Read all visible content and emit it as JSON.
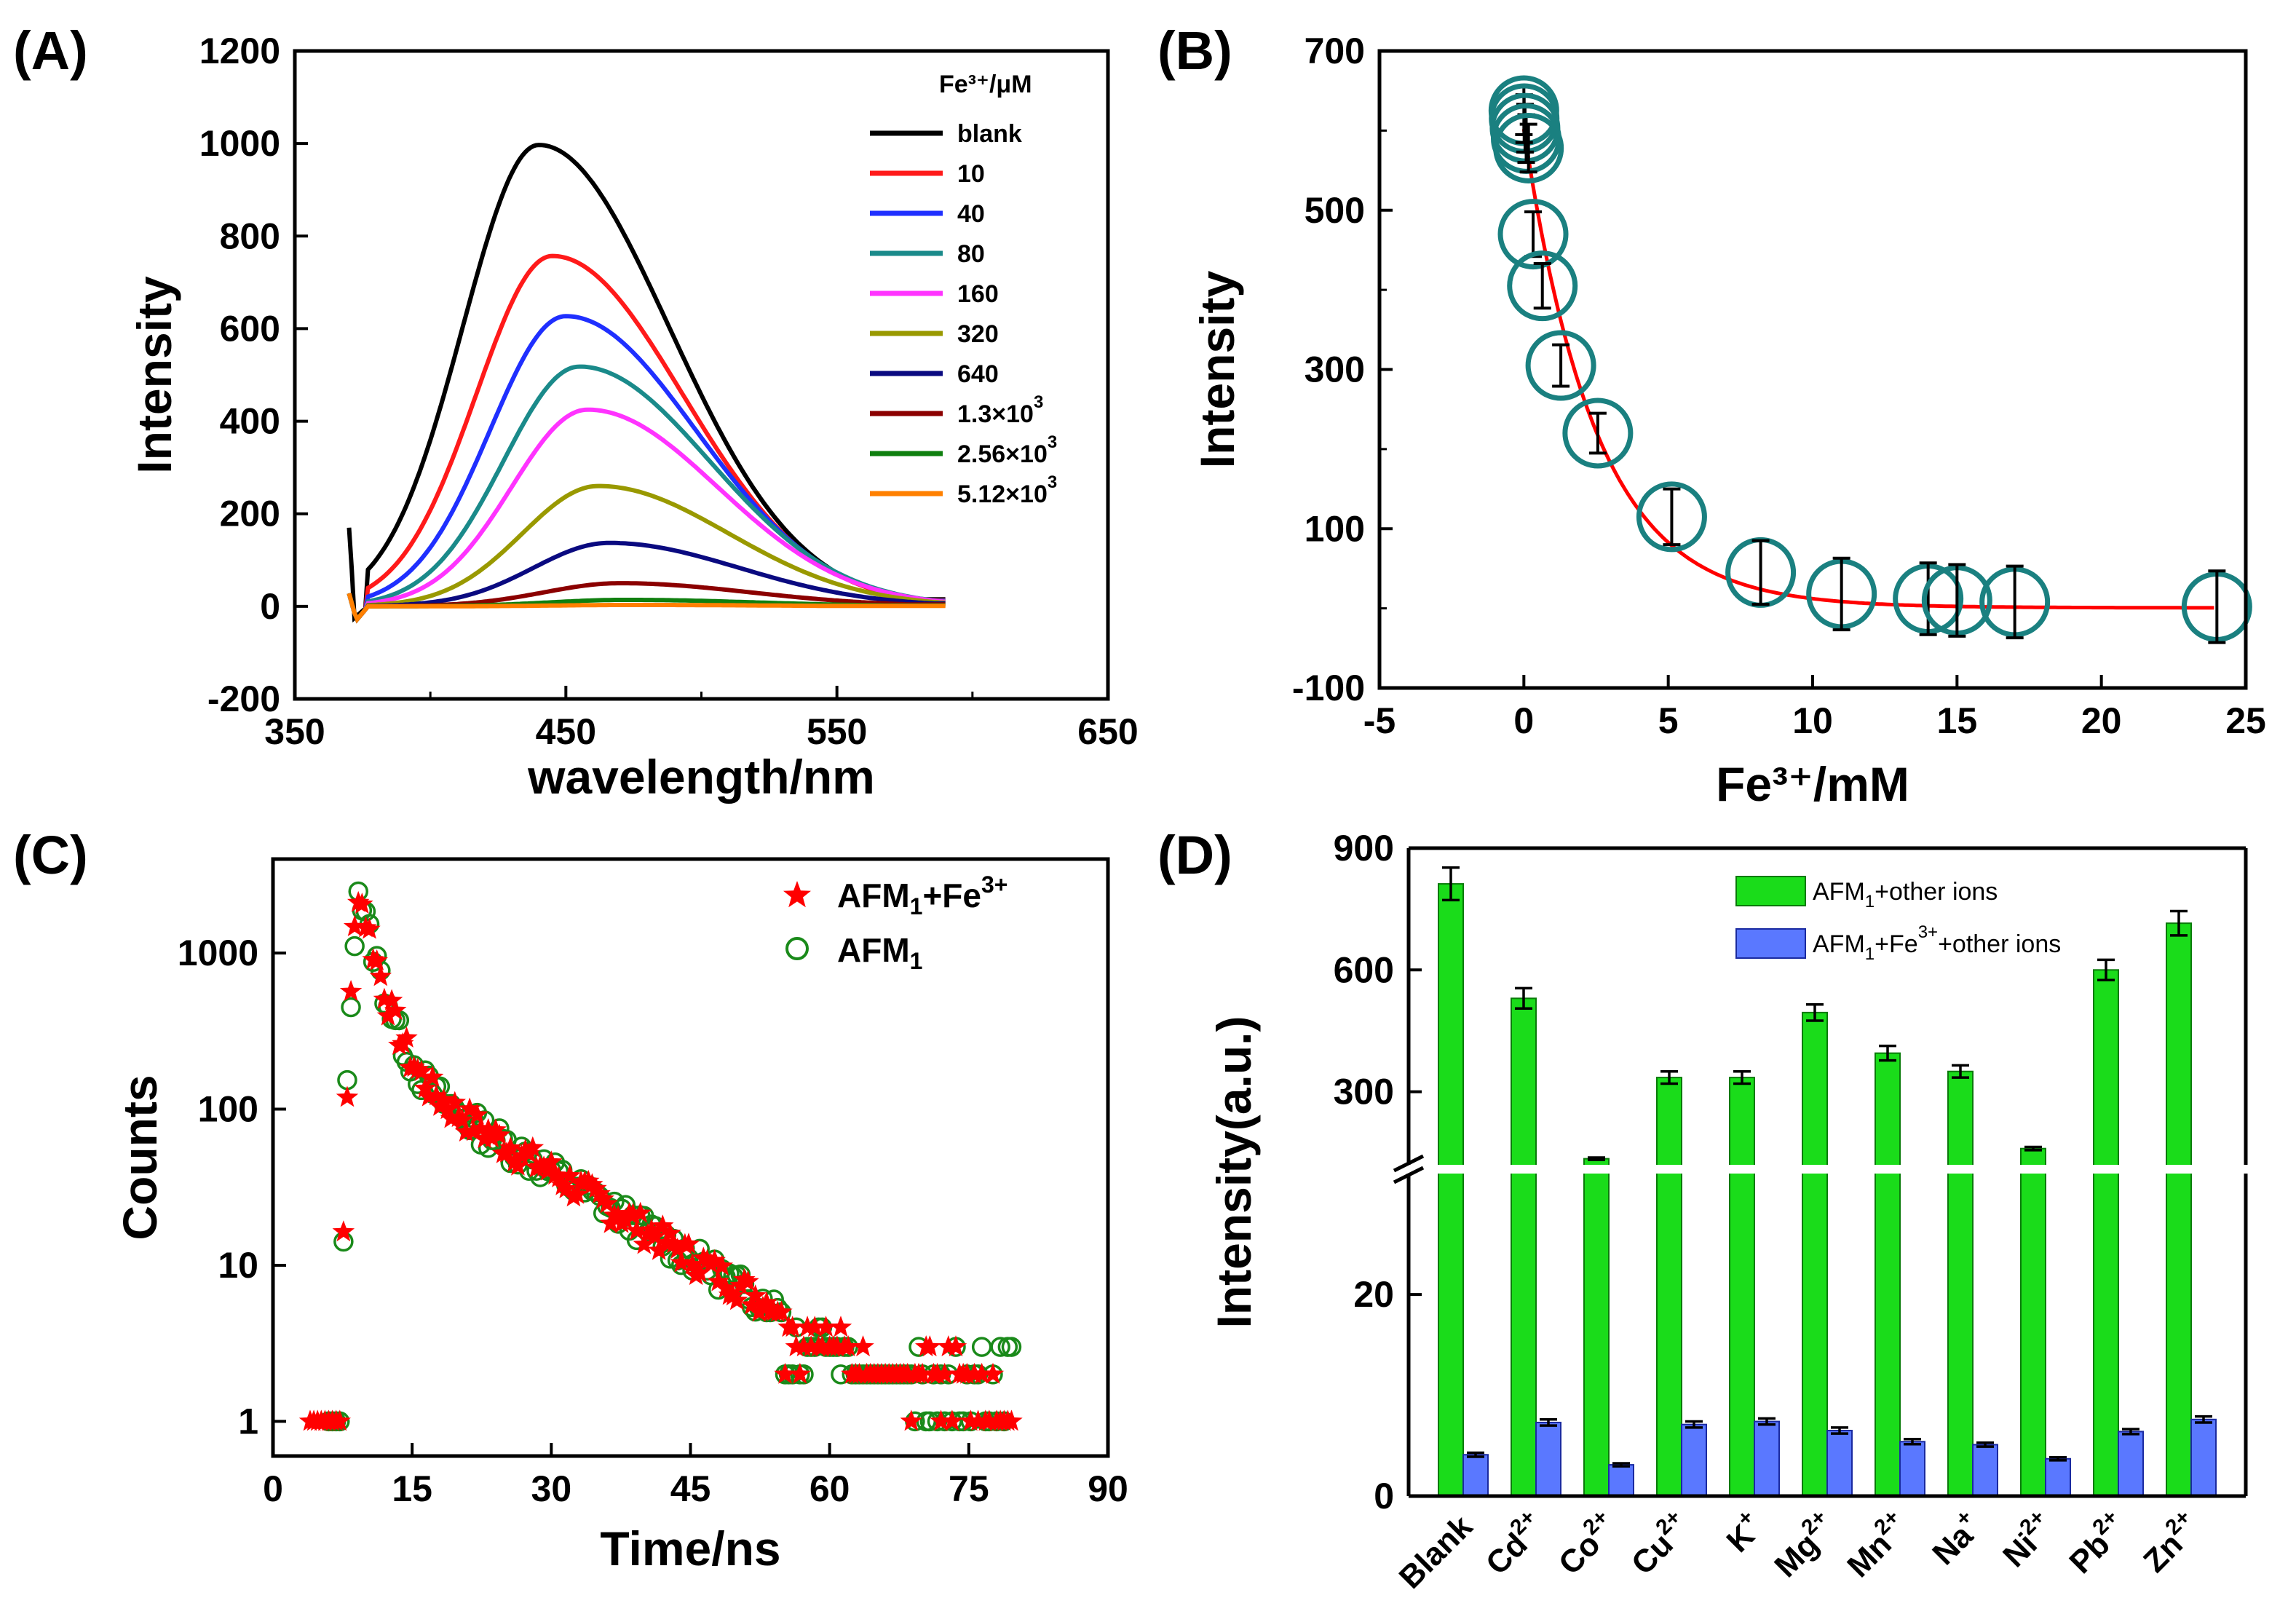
{
  "chart_data": [
    {
      "id": "A",
      "type": "line",
      "panel_label": "(A)",
      "xlabel": "wavelength/nm",
      "ylabel": "Intensity",
      "xlim": [
        350,
        650
      ],
      "ylim": [
        -200,
        1200
      ],
      "xticks": [
        350,
        450,
        550,
        650
      ],
      "yticks": [
        -200,
        0,
        200,
        400,
        600,
        800,
        1000,
        1200
      ],
      "legend_title": "Fe³⁺/μM",
      "x_range": [
        370,
        590
      ],
      "series": [
        {
          "name": "blank",
          "label_base": "blank",
          "label_sup": "",
          "color": "#000000",
          "peak_x": 440,
          "peak_y": 997,
          "end_y": 15
        },
        {
          "name": "10",
          "label_base": "10",
          "label_sup": "",
          "color": "#ff1a1a",
          "peak_x": 445,
          "peak_y": 757,
          "end_y": 13
        },
        {
          "name": "40",
          "label_base": "40",
          "label_sup": "",
          "color": "#1f2fff",
          "peak_x": 450,
          "peak_y": 627,
          "end_y": 12
        },
        {
          "name": "80",
          "label_base": "80",
          "label_sup": "",
          "color": "#1a8a8a",
          "peak_x": 455,
          "peak_y": 518,
          "end_y": 11
        },
        {
          "name": "160",
          "label_base": "160",
          "label_sup": "",
          "color": "#ff33ff",
          "peak_x": 458,
          "peak_y": 425,
          "end_y": 10
        },
        {
          "name": "320",
          "label_base": "320",
          "label_sup": "",
          "color": "#999900",
          "peak_x": 462,
          "peak_y": 260,
          "end_y": 8
        },
        {
          "name": "640",
          "label_base": "640",
          "label_sup": "",
          "color": "#0a0a80",
          "peak_x": 466,
          "peak_y": 137,
          "end_y": 6
        },
        {
          "name": "1.3×10³",
          "label_base": "1.3×10",
          "label_sup": "3",
          "color": "#8b0000",
          "peak_x": 470,
          "peak_y": 50,
          "end_y": 4
        },
        {
          "name": "2.56×10³",
          "label_base": "2.56×10",
          "label_sup": "3",
          "color": "#0f7f0f",
          "peak_x": 472,
          "peak_y": 14,
          "end_y": 2
        },
        {
          "name": "5.12×10³",
          "label_base": "5.12×10",
          "label_sup": "3",
          "color": "#ff8000",
          "peak_x": 475,
          "peak_y": 3,
          "end_y": 1
        }
      ]
    },
    {
      "id": "B",
      "type": "scatter",
      "panel_label": "(B)",
      "xlabel": "Fe³⁺/mM",
      "ylabel": "Intensity",
      "xlim": [
        -5,
        25
      ],
      "ylim": [
        -100,
        700
      ],
      "xticks": [
        -5,
        0,
        5,
        10,
        15,
        20,
        25
      ],
      "yticks": [
        -100,
        100,
        300,
        500,
        700
      ],
      "marker_color": "#1a8080",
      "fit_color": "#ff0000",
      "fit_model": {
        "a": 0,
        "c": 2,
        "d": 600,
        "k": 2.5
      },
      "points": [
        {
          "x": 0,
          "y": 625,
          "err": 30
        },
        {
          "x": 0.01,
          "y": 615,
          "err": 30
        },
        {
          "x": 0.04,
          "y": 603,
          "err": 30
        },
        {
          "x": 0.08,
          "y": 590,
          "err": 30
        },
        {
          "x": 0.16,
          "y": 578,
          "err": 30
        },
        {
          "x": 0.32,
          "y": 470,
          "err": 28
        },
        {
          "x": 0.64,
          "y": 405,
          "err": 28
        },
        {
          "x": 1.28,
          "y": 305,
          "err": 26
        },
        {
          "x": 2.56,
          "y": 220,
          "err": 25
        },
        {
          "x": 5.12,
          "y": 115,
          "err": 35
        },
        {
          "x": 8.2,
          "y": 45,
          "err": 40
        },
        {
          "x": 11,
          "y": 18,
          "err": 45
        },
        {
          "x": 14,
          "y": 12,
          "err": 45
        },
        {
          "x": 15,
          "y": 10,
          "err": 45
        },
        {
          "x": 17,
          "y": 8,
          "err": 45
        },
        {
          "x": 24,
          "y": 2,
          "err": 45
        }
      ]
    },
    {
      "id": "C",
      "type": "scatter",
      "panel_label": "(C)",
      "xlabel": "Time/ns",
      "ylabel": "Counts",
      "yscale": "log",
      "xlim": [
        0,
        90
      ],
      "ylim": [
        0.6,
        4000
      ],
      "xticks": [
        0,
        15,
        30,
        45,
        60,
        75,
        90
      ],
      "yticks": [
        1,
        10,
        100,
        1000
      ],
      "series": [
        {
          "name": "AFM₁+Fe³⁺",
          "label_base": "AFM",
          "label_sub": "1",
          "label_tail": "+Fe",
          "label_sup": "3+",
          "marker": "star",
          "color": "#ff0000",
          "peak_x": 9.2,
          "peak_count": 3000,
          "start_x": 4,
          "end_x": 80,
          "seed": 7
        },
        {
          "name": "AFM₁",
          "label_base": "AFM",
          "label_sub": "1",
          "label_tail": "",
          "label_sup": "",
          "marker": "circle",
          "color": "#1a8a1a",
          "peak_x": 9.2,
          "peak_count": 3000,
          "start_x": 6,
          "end_x": 80,
          "seed": 13
        }
      ]
    },
    {
      "id": "D",
      "type": "bar",
      "panel_label": "(D)",
      "ylabel": "Intensity(a.u.)",
      "yticks_upper": [
        300,
        600,
        900
      ],
      "yticks_lower": [
        0,
        20
      ],
      "upper_range": [
        120,
        900
      ],
      "lower_range": [
        0,
        32
      ],
      "categories": [
        "Blank",
        "Cd²⁺",
        "Co²⁺",
        "Cu²⁺",
        "K⁺",
        "Mg²⁺",
        "Mn²⁺",
        "Na⁺",
        "Ni²⁺",
        "Pb²⁺",
        "Zn²⁺"
      ],
      "category_base": [
        "Blank",
        "Cd",
        "Co",
        "Cu",
        "K",
        "Mg",
        "Mn",
        "Na",
        "Ni",
        "Pb",
        "Zn"
      ],
      "category_sup": [
        "",
        "2+",
        "2+",
        "2+",
        "+",
        "2+",
        "2+",
        "+",
        "2+",
        "2+",
        "2+"
      ],
      "series": [
        {
          "name": "AFM₁+other ions",
          "label_base": "AFM",
          "label_sub": "1",
          "label_tail": "+other ions",
          "label_sup": "",
          "label_end": "",
          "color": "#1adc1a",
          "edge": "#0a7a0a",
          "values": [
            812,
            530,
            135,
            335,
            335,
            495,
            395,
            350,
            160,
            600,
            715
          ],
          "errors": [
            40,
            25,
            3,
            15,
            15,
            20,
            18,
            15,
            4,
            25,
            30
          ]
        },
        {
          "name": "AFM₁+Fe³⁺+other ions",
          "label_base": "AFM",
          "label_sub": "1",
          "label_tail": "+Fe",
          "label_sup": "3+",
          "label_end": "+other ions",
          "color": "#5a78ff",
          "edge": "#1a2aa0",
          "values": [
            4.1,
            7.3,
            3.1,
            7.1,
            7.4,
            6.5,
            5.4,
            5.1,
            3.7,
            6.4,
            7.6
          ],
          "errors": [
            0.2,
            0.3,
            0.15,
            0.3,
            0.3,
            0.3,
            0.25,
            0.2,
            0.15,
            0.25,
            0.3
          ]
        }
      ]
    }
  ]
}
